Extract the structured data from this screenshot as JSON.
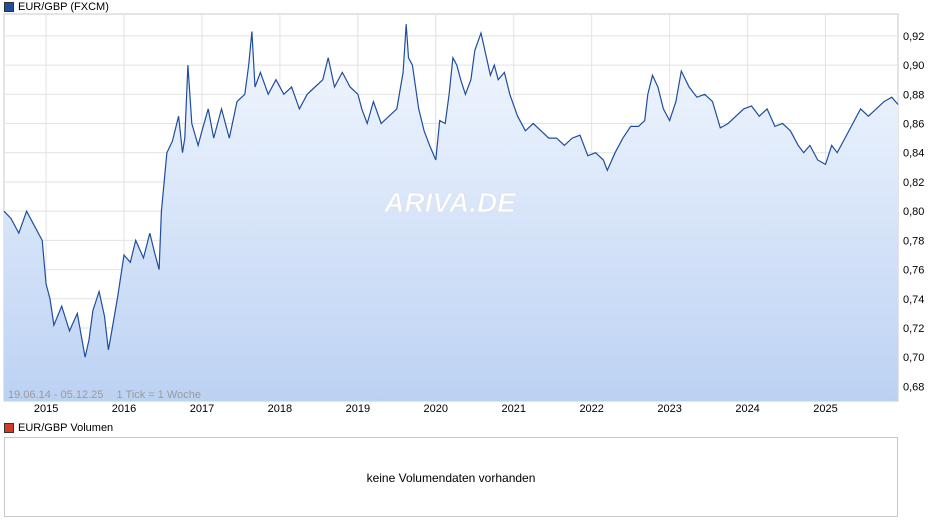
{
  "chart_data": {
    "type": "area",
    "title": "EUR/GBP (FXCM)",
    "range_label": "19.06.14 - 05.12.25",
    "tick_info": "1 Tick = 1 Woche",
    "watermark": "ARIVA.DE",
    "x_ticks": [
      "2015",
      "2016",
      "2017",
      "2018",
      "2019",
      "2020",
      "2021",
      "2022",
      "2023",
      "2024",
      "2025"
    ],
    "ylim": [
      0.67,
      0.935
    ],
    "xlim": [
      2014.46,
      2025.93
    ],
    "y_ticks": [
      0.68,
      0.7,
      0.72,
      0.74,
      0.76,
      0.78,
      0.8,
      0.82,
      0.84,
      0.86,
      0.88,
      0.9,
      0.92
    ],
    "y_tick_labels": [
      "0,68",
      "0,70",
      "0,72",
      "0,74",
      "0,76",
      "0,78",
      "0,80",
      "0,82",
      "0,84",
      "0,86",
      "0,88",
      "0,90",
      "0,92"
    ],
    "grid": true,
    "series": [
      {
        "name": "EUR/GBP (FXCM)",
        "color": "#1f4e9e",
        "x": [
          2014.46,
          2014.55,
          2014.65,
          2014.75,
          2014.85,
          2014.95,
          2015.0,
          2015.05,
          2015.1,
          2015.2,
          2015.3,
          2015.4,
          2015.5,
          2015.55,
          2015.6,
          2015.68,
          2015.75,
          2015.8,
          2015.85,
          2015.92,
          2016.0,
          2016.08,
          2016.15,
          2016.25,
          2016.33,
          2016.4,
          2016.45,
          2016.48,
          2016.55,
          2016.62,
          2016.7,
          2016.75,
          2016.78,
          2016.82,
          2016.87,
          2016.95,
          2017.0,
          2017.08,
          2017.15,
          2017.25,
          2017.35,
          2017.45,
          2017.55,
          2017.6,
          2017.64,
          2017.68,
          2017.75,
          2017.85,
          2017.95,
          2018.05,
          2018.15,
          2018.25,
          2018.35,
          2018.45,
          2018.55,
          2018.62,
          2018.7,
          2018.8,
          2018.9,
          2019.0,
          2019.05,
          2019.12,
          2019.2,
          2019.3,
          2019.4,
          2019.5,
          2019.58,
          2019.62,
          2019.65,
          2019.7,
          2019.78,
          2019.85,
          2019.92,
          2020.0,
          2020.05,
          2020.12,
          2020.17,
          2020.22,
          2020.27,
          2020.32,
          2020.38,
          2020.45,
          2020.5,
          2020.58,
          2020.65,
          2020.7,
          2020.75,
          2020.8,
          2020.88,
          2020.95,
          2021.05,
          2021.15,
          2021.25,
          2021.35,
          2021.45,
          2021.55,
          2021.65,
          2021.75,
          2021.85,
          2021.95,
          2022.05,
          2022.15,
          2022.2,
          2022.3,
          2022.4,
          2022.5,
          2022.6,
          2022.68,
          2022.72,
          2022.78,
          2022.85,
          2022.92,
          2023.0,
          2023.08,
          2023.15,
          2023.25,
          2023.35,
          2023.45,
          2023.55,
          2023.65,
          2023.75,
          2023.85,
          2023.95,
          2024.05,
          2024.15,
          2024.25,
          2024.35,
          2024.45,
          2024.55,
          2024.65,
          2024.72,
          2024.8,
          2024.9,
          2025.0,
          2025.08,
          2025.15,
          2025.25,
          2025.35,
          2025.45,
          2025.55,
          2025.65,
          2025.75,
          2025.85,
          2025.93
        ],
        "values": [
          0.8,
          0.795,
          0.785,
          0.8,
          0.79,
          0.78,
          0.75,
          0.74,
          0.722,
          0.735,
          0.718,
          0.73,
          0.7,
          0.712,
          0.732,
          0.745,
          0.728,
          0.705,
          0.72,
          0.742,
          0.77,
          0.765,
          0.78,
          0.768,
          0.785,
          0.77,
          0.76,
          0.8,
          0.84,
          0.848,
          0.865,
          0.84,
          0.85,
          0.9,
          0.86,
          0.845,
          0.855,
          0.87,
          0.85,
          0.87,
          0.85,
          0.875,
          0.88,
          0.9,
          0.923,
          0.885,
          0.895,
          0.88,
          0.89,
          0.88,
          0.885,
          0.87,
          0.88,
          0.885,
          0.89,
          0.905,
          0.885,
          0.895,
          0.885,
          0.88,
          0.87,
          0.86,
          0.875,
          0.86,
          0.865,
          0.87,
          0.895,
          0.928,
          0.905,
          0.9,
          0.87,
          0.855,
          0.845,
          0.835,
          0.862,
          0.86,
          0.88,
          0.905,
          0.9,
          0.89,
          0.88,
          0.89,
          0.91,
          0.922,
          0.905,
          0.893,
          0.9,
          0.89,
          0.895,
          0.88,
          0.865,
          0.855,
          0.86,
          0.855,
          0.85,
          0.85,
          0.845,
          0.85,
          0.852,
          0.838,
          0.84,
          0.835,
          0.828,
          0.84,
          0.85,
          0.858,
          0.858,
          0.862,
          0.88,
          0.893,
          0.885,
          0.87,
          0.862,
          0.875,
          0.896,
          0.885,
          0.878,
          0.88,
          0.875,
          0.857,
          0.86,
          0.865,
          0.87,
          0.872,
          0.865,
          0.87,
          0.858,
          0.86,
          0.855,
          0.845,
          0.84,
          0.845,
          0.835,
          0.832,
          0.845,
          0.84,
          0.85,
          0.86,
          0.87,
          0.865,
          0.87,
          0.875,
          0.878,
          0.873
        ]
      }
    ],
    "volume_title": "EUR/GBP Volumen",
    "volume_color": "#d23b2a",
    "volume_message": "keine Volumendaten vorhanden"
  }
}
